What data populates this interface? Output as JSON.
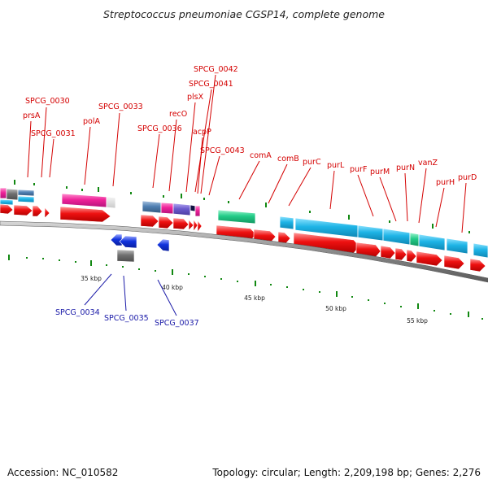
{
  "title": "Streptococcus pneumoniae CGSP14, complete genome",
  "footer": {
    "accession": "Accession: NC_010582",
    "summary": "Topology: circular; Length: 2,209,198 bp; Genes: 2,276"
  },
  "scale_labels": [
    "35 kbp",
    "40 kbp",
    "45 kbp",
    "50 kbp",
    "55 kbp"
  ],
  "gene_labels_forward": [
    "SPCG_0030",
    "prsA",
    "SPCG_0031",
    "polA",
    "SPCG_0033",
    "SPCG_0036",
    "recO",
    "plsX",
    "SPCG_0041",
    "SPCG_0042",
    "acpP",
    "SPCG_0043",
    "comA",
    "comB",
    "purC",
    "purL",
    "purF",
    "purM",
    "purN",
    "vanZ",
    "purH",
    "purD"
  ],
  "gene_labels_reverse": [
    "SPCG_0034",
    "SPCG_0035",
    "SPCG_0037"
  ],
  "colors": {
    "forward_label": "#d40000",
    "reverse_label": "#1a1aa8",
    "cds_forward": "#ee1111",
    "cds_reverse": "#1133dd",
    "cog_blue": "#1eb4e6",
    "cog_pink": "#ee2299",
    "cog_steel": "#4f7fb2",
    "cog_purple": "#6a5acd",
    "cog_green": "#22cc88",
    "cog_gray": "#707070",
    "backbone": "#8a8a8a",
    "tick_green": "#118811"
  }
}
